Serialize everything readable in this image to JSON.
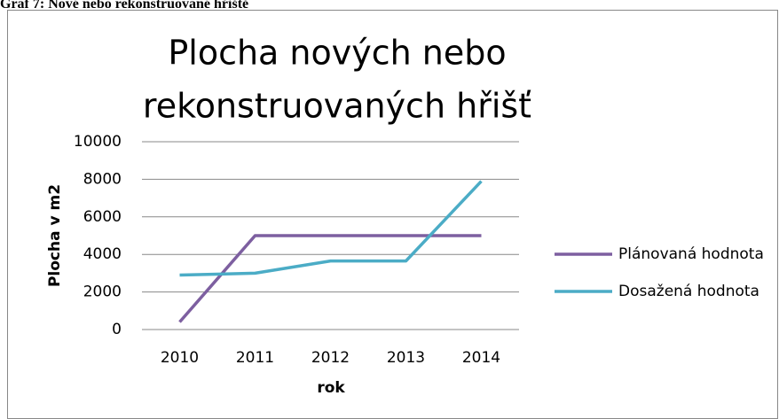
{
  "caption": "Graf 7: Nové nebo rekonstruované hřiště",
  "chart_data": {
    "type": "line",
    "title": [
      "Plocha nových nebo",
      "rekonstruovaných hřišť"
    ],
    "x_label": "rok",
    "y_label": "Plocha v m2",
    "categories": [
      "2010",
      "2011",
      "2012",
      "2013",
      "2014"
    ],
    "series": [
      {
        "name": "Plánovaná hodnota",
        "color": "#7d5fa0",
        "values": [
          400,
          5000,
          5000,
          5000,
          5000
        ]
      },
      {
        "name": "Dosažená hodnota",
        "color": "#4bacc6",
        "values": [
          2900,
          3000,
          3650,
          3650,
          7900
        ]
      }
    ],
    "ylim": [
      0,
      10000
    ],
    "yticks": [
      0,
      2000,
      4000,
      6000,
      8000,
      10000
    ],
    "grid": true,
    "legend": "right"
  }
}
